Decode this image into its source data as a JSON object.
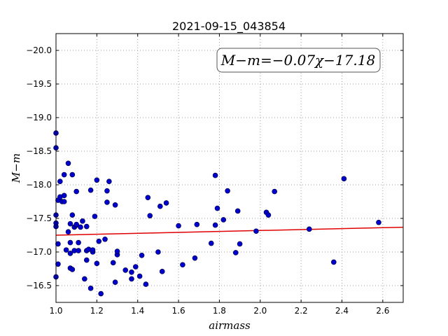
{
  "chart_data": {
    "type": "scatter",
    "title": "2021-09-15_043854",
    "xlabel": "airmass",
    "ylabel": "M−m",
    "xlim": [
      1.0,
      2.7
    ],
    "ylim": [
      -20.25,
      -16.25
    ],
    "y_inverted": true,
    "grid": true,
    "annotation": "M−m=−0.07χ−17.18",
    "x_ticks": [
      1.0,
      1.2,
      1.4,
      1.6,
      1.8,
      2.0,
      2.2,
      2.4,
      2.6
    ],
    "x_tick_labels": [
      "1.0",
      "1.2",
      "1.4",
      "1.6",
      "1.8",
      "2.0",
      "2.2",
      "2.4",
      "2.6"
    ],
    "y_ticks": [
      -16.5,
      -17.0,
      -17.5,
      -18.0,
      -18.5,
      -19.0,
      -19.5,
      -20.0
    ],
    "y_tick_labels": [
      "−16.5",
      "−17.0",
      "−17.5",
      "−18.0",
      "−18.5",
      "−19.0",
      "−19.5",
      "−20.0"
    ],
    "fit_line": {
      "slope": -0.07,
      "intercept": -17.18
    },
    "colors": {
      "points": "#0000cc",
      "fit": "#e00000",
      "grid": "#a0a0a0"
    },
    "points": [
      [
        1.0,
        -16.63
      ],
      [
        1.0,
        -17.38
      ],
      [
        1.0,
        -17.43
      ],
      [
        1.0,
        -17.55
      ],
      [
        1.0,
        -18.55
      ],
      [
        1.0,
        -18.77
      ],
      [
        1.01,
        -16.82
      ],
      [
        1.01,
        -17.12
      ],
      [
        1.01,
        -17.77
      ],
      [
        1.02,
        -17.82
      ],
      [
        1.02,
        -18.05
      ],
      [
        1.03,
        -17.75
      ],
      [
        1.04,
        -17.75
      ],
      [
        1.04,
        -17.84
      ],
      [
        1.04,
        -18.15
      ],
      [
        1.05,
        -17.03
      ],
      [
        1.06,
        -17.3
      ],
      [
        1.06,
        -18.32
      ],
      [
        1.07,
        -16.98
      ],
      [
        1.07,
        -17.14
      ],
      [
        1.07,
        -16.76
      ],
      [
        1.07,
        -17.42
      ],
      [
        1.08,
        -16.74
      ],
      [
        1.08,
        -17.55
      ],
      [
        1.08,
        -18.15
      ],
      [
        1.09,
        -17.02
      ],
      [
        1.09,
        -17.37
      ],
      [
        1.1,
        -17.4
      ],
      [
        1.1,
        -17.41
      ],
      [
        1.1,
        -17.9
      ],
      [
        1.11,
        -17.14
      ],
      [
        1.11,
        -17.02
      ],
      [
        1.12,
        -17.37
      ],
      [
        1.13,
        -17.46
      ],
      [
        1.14,
        -16.6
      ],
      [
        1.15,
        -16.88
      ],
      [
        1.15,
        -17.02
      ],
      [
        1.15,
        -17.38
      ],
      [
        1.16,
        -17.04
      ],
      [
        1.17,
        -16.46
      ],
      [
        1.17,
        -17.92
      ],
      [
        1.18,
        -17.0
      ],
      [
        1.18,
        -17.03
      ],
      [
        1.19,
        -17.53
      ],
      [
        1.2,
        -16.83
      ],
      [
        1.2,
        -18.07
      ],
      [
        1.21,
        -17.16
      ],
      [
        1.22,
        -16.38
      ],
      [
        1.24,
        -17.19
      ],
      [
        1.25,
        -17.74
      ],
      [
        1.25,
        -17.91
      ],
      [
        1.26,
        -18.05
      ],
      [
        1.28,
        -16.84
      ],
      [
        1.29,
        -16.55
      ],
      [
        1.29,
        -17.7
      ],
      [
        1.3,
        -16.96
      ],
      [
        1.3,
        -17.01
      ],
      [
        1.34,
        -16.73
      ],
      [
        1.37,
        -16.6
      ],
      [
        1.37,
        -16.7
      ],
      [
        1.39,
        -16.78
      ],
      [
        1.41,
        -16.64
      ],
      [
        1.42,
        -16.95
      ],
      [
        1.44,
        -16.52
      ],
      [
        1.45,
        -17.81
      ],
      [
        1.46,
        -17.54
      ],
      [
        1.5,
        -17.0
      ],
      [
        1.51,
        -17.68
      ],
      [
        1.52,
        -16.71
      ],
      [
        1.54,
        -17.73
      ],
      [
        1.6,
        -17.39
      ],
      [
        1.62,
        -16.81
      ],
      [
        1.68,
        -16.91
      ],
      [
        1.69,
        -17.41
      ],
      [
        1.76,
        -17.13
      ],
      [
        1.78,
        -17.4
      ],
      [
        1.78,
        -18.14
      ],
      [
        1.79,
        -17.65
      ],
      [
        1.82,
        -17.48
      ],
      [
        1.84,
        -17.91
      ],
      [
        1.88,
        -16.99
      ],
      [
        1.89,
        -17.61
      ],
      [
        1.9,
        -17.12
      ],
      [
        1.98,
        -17.31
      ],
      [
        2.03,
        -17.59
      ],
      [
        2.04,
        -17.55
      ],
      [
        2.07,
        -17.9
      ],
      [
        2.24,
        -17.34
      ],
      [
        2.36,
        -16.85
      ],
      [
        2.41,
        -18.09
      ],
      [
        2.58,
        -17.44
      ]
    ]
  }
}
